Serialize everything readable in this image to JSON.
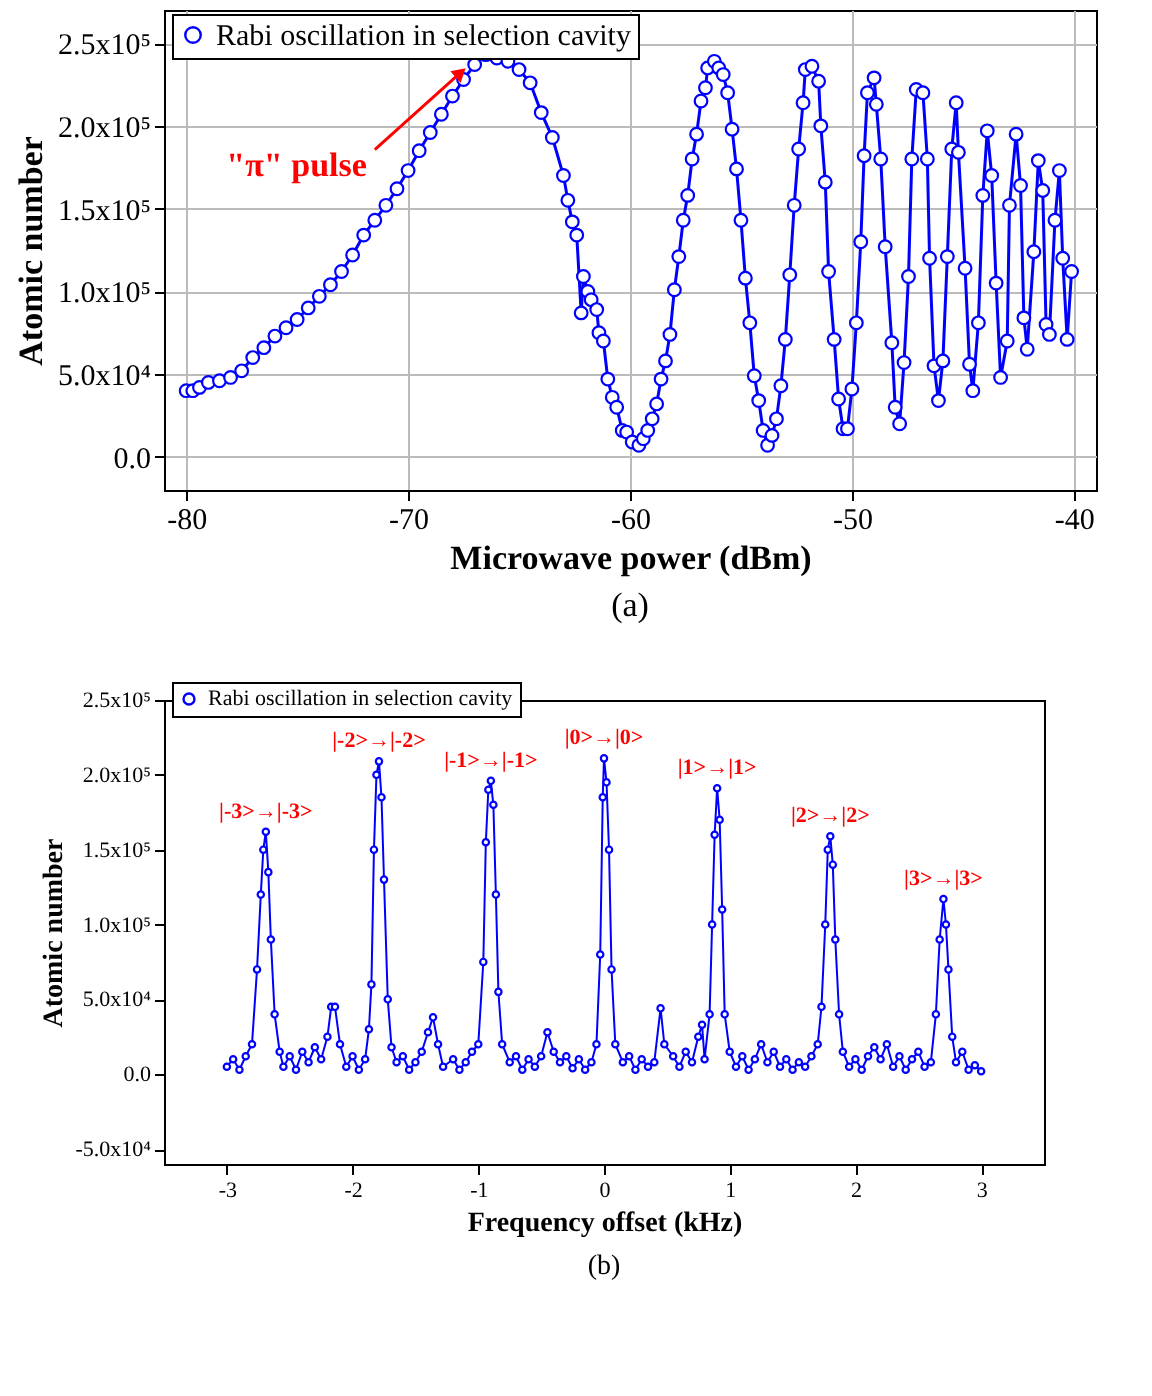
{
  "chart_data": [
    {
      "type": "line",
      "xlabel": "Microwave power (dBm)",
      "ylabel": "Atomic number",
      "xlim": [
        -81,
        -39
      ],
      "ylim": [
        -20000,
        270000
      ],
      "xticks": [
        -80,
        -70,
        -60,
        -50,
        -40
      ],
      "yticks": [
        {
          "value": 0,
          "label": "0.0"
        },
        {
          "value": 50000,
          "label": "5.0x10⁴"
        },
        {
          "value": 100000,
          "label": "1.0x10⁵"
        },
        {
          "value": 150000,
          "label": "1.5x10⁵"
        },
        {
          "value": 200000,
          "label": "2.0x10⁵"
        },
        {
          "value": 250000,
          "label": "2.5x10⁵"
        }
      ],
      "grid": true,
      "legend": "top left",
      "marker": "circle",
      "annotations": [
        {
          "text": "\"π\" pulse",
          "x": -67.3,
          "y": 235000
        },
        "(a)"
      ],
      "series": [
        {
          "name": "Rabi oscillation in selection cavity",
          "color": "#0000ff",
          "x": [
            -80,
            -79.7,
            -79.4,
            -79,
            -78.5,
            -78,
            -77.5,
            -77,
            -76.5,
            -76,
            -75.5,
            -75,
            -74.5,
            -74,
            -73.5,
            -73,
            -72.5,
            -72,
            -71.5,
            -71,
            -70.5,
            -70,
            -69.5,
            -69,
            -68.5,
            -68,
            -67.5,
            -67,
            -66.5,
            -66,
            -65.5,
            -65,
            -64.5,
            -64,
            -63.5,
            -63,
            -62.8,
            -62.6,
            -62.4,
            -62.2,
            -62.1,
            -61.9,
            -61.75,
            -61.5,
            -61.4,
            -61.2,
            -61.0,
            -60.8,
            -60.6,
            -60.35,
            -60.15,
            -59.9,
            -59.6,
            -59.4,
            -59.2,
            -59.0,
            -58.8,
            -58.6,
            -58.4,
            -58.2,
            -58.0,
            -57.8,
            -57.6,
            -57.4,
            -57.2,
            -57.0,
            -56.8,
            -56.6,
            -56.5,
            -56.2,
            -56.0,
            -55.8,
            -55.6,
            -55.4,
            -55.2,
            -55.0,
            -54.8,
            -54.6,
            -54.4,
            -54.2,
            -54.0,
            -53.8,
            -53.6,
            -53.4,
            -53.2,
            -53.0,
            -52.8,
            -52.6,
            -52.4,
            -52.2,
            -52.1,
            -51.8,
            -51.5,
            -51.4,
            -51.2,
            -51.05,
            -50.8,
            -50.6,
            -50.4,
            -50.2,
            -50.0,
            -49.8,
            -49.6,
            -49.45,
            -49.3,
            -49.0,
            -48.9,
            -48.7,
            -48.5,
            -48.2,
            -48.05,
            -47.85,
            -47.65,
            -47.45,
            -47.3,
            -47.1,
            -46.8,
            -46.6,
            -46.5,
            -46.3,
            -46.1,
            -45.9,
            -45.7,
            -45.5,
            -45.3,
            -45.2,
            -44.9,
            -44.7,
            -44.55,
            -44.3,
            -44.1,
            -43.9,
            -43.7,
            -43.5,
            -43.3,
            -43.0,
            -42.9,
            -42.6,
            -42.4,
            -42.25,
            -42.1,
            -41.8,
            -41.6,
            -41.4,
            -41.25,
            -41.1,
            -40.85,
            -40.65,
            -40.5,
            -40.3,
            -40.1
          ],
          "values": [
            40000,
            40000,
            42000,
            45000,
            46000,
            48000,
            52000,
            60000,
            66000,
            73000,
            78000,
            83000,
            90000,
            97000,
            104000,
            112000,
            122000,
            134000,
            143000,
            152000,
            162000,
            173000,
            185000,
            196000,
            207000,
            218000,
            228000,
            237000,
            243000,
            241000,
            239000,
            234000,
            226000,
            208000,
            193000,
            170000,
            155000,
            142000,
            134000,
            87000,
            109000,
            100000,
            95000,
            89000,
            75000,
            70000,
            47000,
            36000,
            30000,
            16000,
            15000,
            9000,
            7000,
            11000,
            16000,
            23000,
            32000,
            47000,
            58000,
            74000,
            101000,
            121000,
            143000,
            158000,
            180000,
            195000,
            215000,
            223000,
            235000,
            239000,
            235000,
            231000,
            220000,
            198000,
            174000,
            143000,
            108000,
            81000,
            49000,
            34000,
            16000,
            7000,
            13000,
            23000,
            43000,
            71000,
            110000,
            152000,
            186000,
            214000,
            234000,
            236000,
            227000,
            200000,
            166000,
            112000,
            71000,
            35000,
            17000,
            17000,
            41000,
            81000,
            130000,
            182000,
            220000,
            229000,
            213000,
            180000,
            127000,
            69000,
            30000,
            20000,
            57000,
            109000,
            180000,
            222000,
            220000,
            180000,
            120000,
            55000,
            34000,
            58000,
            121000,
            186000,
            214000,
            184000,
            114000,
            56000,
            40000,
            81000,
            158000,
            197000,
            170000,
            105000,
            48000,
            70000,
            152000,
            195000,
            164000,
            84000,
            65000,
            124000,
            179000,
            161000,
            80000,
            74000,
            143000,
            173000,
            120000,
            71000,
            112000
          ]
        }
      ]
    },
    {
      "type": "line",
      "xlabel": "Frequency offset (kHz)",
      "ylabel": "Atomic number",
      "xlim": [
        -3.5,
        3.5
      ],
      "ylim": [
        -60000,
        250000
      ],
      "xticks": [
        -3,
        -2,
        -1,
        0,
        1,
        2,
        3
      ],
      "yticks": [
        {
          "value": -50000,
          "label": "-5.0x10⁴"
        },
        {
          "value": 0,
          "label": "0.0"
        },
        {
          "value": 50000,
          "label": "5.0x10⁴"
        },
        {
          "value": 100000,
          "label": "1.0x10⁵"
        },
        {
          "value": 150000,
          "label": "1.5x10⁵"
        },
        {
          "value": 200000,
          "label": "2.0x10⁵"
        },
        {
          "value": 250000,
          "label": "2.5x10⁵"
        }
      ],
      "legend": "top left",
      "marker": "circle",
      "annotations": [
        {
          "text": "|-3>→|-3>",
          "x": -2.69,
          "y": 162000
        },
        {
          "text": "|-2>→|-2>",
          "x": -1.79,
          "y": 209000
        },
        {
          "text": "|-1>→|-1>",
          "x": -0.9,
          "y": 196000
        },
        {
          "text": "|0>→|0>",
          "x": 0,
          "y": 211000
        },
        {
          "text": "|1>→|1>",
          "x": 0.9,
          "y": 191000
        },
        {
          "text": "|2>→|2>",
          "x": 1.8,
          "y": 159000
        },
        {
          "text": "|3>→|3>",
          "x": 2.7,
          "y": 117000
        },
        "(b)"
      ],
      "series": [
        {
          "name": "Rabi oscillation in selection cavity",
          "color": "#0000ff",
          "x": [
            -3.0,
            -2.95,
            -2.9,
            -2.85,
            -2.8,
            -2.76,
            -2.73,
            -2.71,
            -2.69,
            -2.67,
            -2.65,
            -2.62,
            -2.58,
            -2.55,
            -2.5,
            -2.45,
            -2.4,
            -2.35,
            -2.3,
            -2.25,
            -2.2,
            -2.17,
            -2.14,
            -2.1,
            -2.05,
            -2.0,
            -1.95,
            -1.9,
            -1.87,
            -1.85,
            -1.83,
            -1.81,
            -1.79,
            -1.77,
            -1.75,
            -1.72,
            -1.69,
            -1.65,
            -1.6,
            -1.55,
            -1.5,
            -1.45,
            -1.4,
            -1.36,
            -1.32,
            -1.28,
            -1.2,
            -1.15,
            -1.1,
            -1.05,
            -1.0,
            -0.96,
            -0.94,
            -0.92,
            -0.9,
            -0.88,
            -0.86,
            -0.84,
            -0.81,
            -0.75,
            -0.7,
            -0.65,
            -0.6,
            -0.55,
            -0.5,
            -0.45,
            -0.4,
            -0.35,
            -0.3,
            -0.25,
            -0.2,
            -0.15,
            -0.1,
            -0.06,
            -0.03,
            -0.01,
            0.0,
            0.02,
            0.04,
            0.06,
            0.09,
            0.15,
            0.2,
            0.25,
            0.3,
            0.35,
            0.4,
            0.45,
            0.48,
            0.55,
            0.6,
            0.65,
            0.7,
            0.75,
            0.78,
            0.8,
            0.84,
            0.86,
            0.88,
            0.9,
            0.92,
            0.94,
            0.96,
            1.0,
            1.05,
            1.1,
            1.15,
            1.2,
            1.25,
            1.3,
            1.35,
            1.4,
            1.45,
            1.5,
            1.55,
            1.6,
            1.65,
            1.7,
            1.73,
            1.76,
            1.78,
            1.8,
            1.82,
            1.84,
            1.87,
            1.9,
            1.95,
            2.0,
            2.05,
            2.1,
            2.15,
            2.2,
            2.25,
            2.3,
            2.35,
            2.4,
            2.45,
            2.5,
            2.55,
            2.6,
            2.64,
            2.67,
            2.7,
            2.72,
            2.74,
            2.77,
            2.8,
            2.85,
            2.9,
            2.95,
            3.0
          ],
          "values": [
            5000,
            10000,
            3000,
            12000,
            20000,
            70000,
            120000,
            150000,
            162000,
            135000,
            90000,
            40000,
            15000,
            5000,
            12000,
            3000,
            15000,
            8000,
            18000,
            10000,
            25000,
            45000,
            45000,
            20000,
            5000,
            12000,
            3000,
            10000,
            30000,
            60000,
            150000,
            200000,
            209000,
            185000,
            130000,
            50000,
            18000,
            8000,
            12000,
            3000,
            8000,
            15000,
            28000,
            38000,
            20000,
            5000,
            10000,
            3000,
            8000,
            15000,
            20000,
            75000,
            155000,
            190000,
            196000,
            180000,
            120000,
            55000,
            20000,
            8000,
            12000,
            3000,
            10000,
            5000,
            12000,
            28000,
            15000,
            8000,
            12000,
            4000,
            10000,
            3000,
            8000,
            20000,
            80000,
            185000,
            211000,
            195000,
            150000,
            70000,
            20000,
            8000,
            12000,
            3000,
            10000,
            5000,
            8000,
            44000,
            20000,
            12000,
            5000,
            15000,
            8000,
            25000,
            33000,
            10000,
            40000,
            100000,
            160000,
            191000,
            170000,
            110000,
            40000,
            15000,
            5000,
            12000,
            3000,
            10000,
            20000,
            8000,
            15000,
            5000,
            10000,
            3000,
            8000,
            5000,
            12000,
            20000,
            45000,
            100000,
            150000,
            159000,
            140000,
            90000,
            40000,
            15000,
            5000,
            10000,
            3000,
            12000,
            18000,
            10000,
            20000,
            5000,
            12000,
            3000,
            10000,
            15000,
            5000,
            8000,
            40000,
            90000,
            117000,
            100000,
            70000,
            25000,
            8000,
            15000,
            3000,
            6000,
            2000
          ]
        }
      ]
    }
  ]
}
